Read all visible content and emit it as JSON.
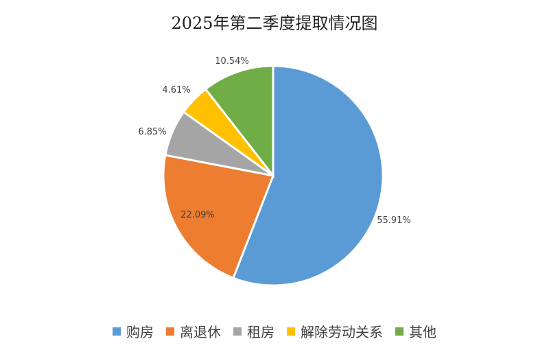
{
  "chart_data": {
    "type": "pie",
    "title": "2025年第二季度提取情况图",
    "slices": [
      {
        "name": "购房",
        "value": 55.91,
        "label": "55.91%",
        "color": "#5B9BD5"
      },
      {
        "name": "离退休",
        "value": 22.09,
        "label": "22.09%",
        "color": "#ED7D31"
      },
      {
        "name": "租房",
        "value": 6.85,
        "label": "6.85%",
        "color": "#A5A5A5"
      },
      {
        "name": "解除劳动关系",
        "value": 4.61,
        "label": "4.61%",
        "color": "#FFC000"
      },
      {
        "name": "其他",
        "value": 10.54,
        "label": "10.54%",
        "color": "#70AD47"
      }
    ],
    "legend_position": "bottom"
  }
}
